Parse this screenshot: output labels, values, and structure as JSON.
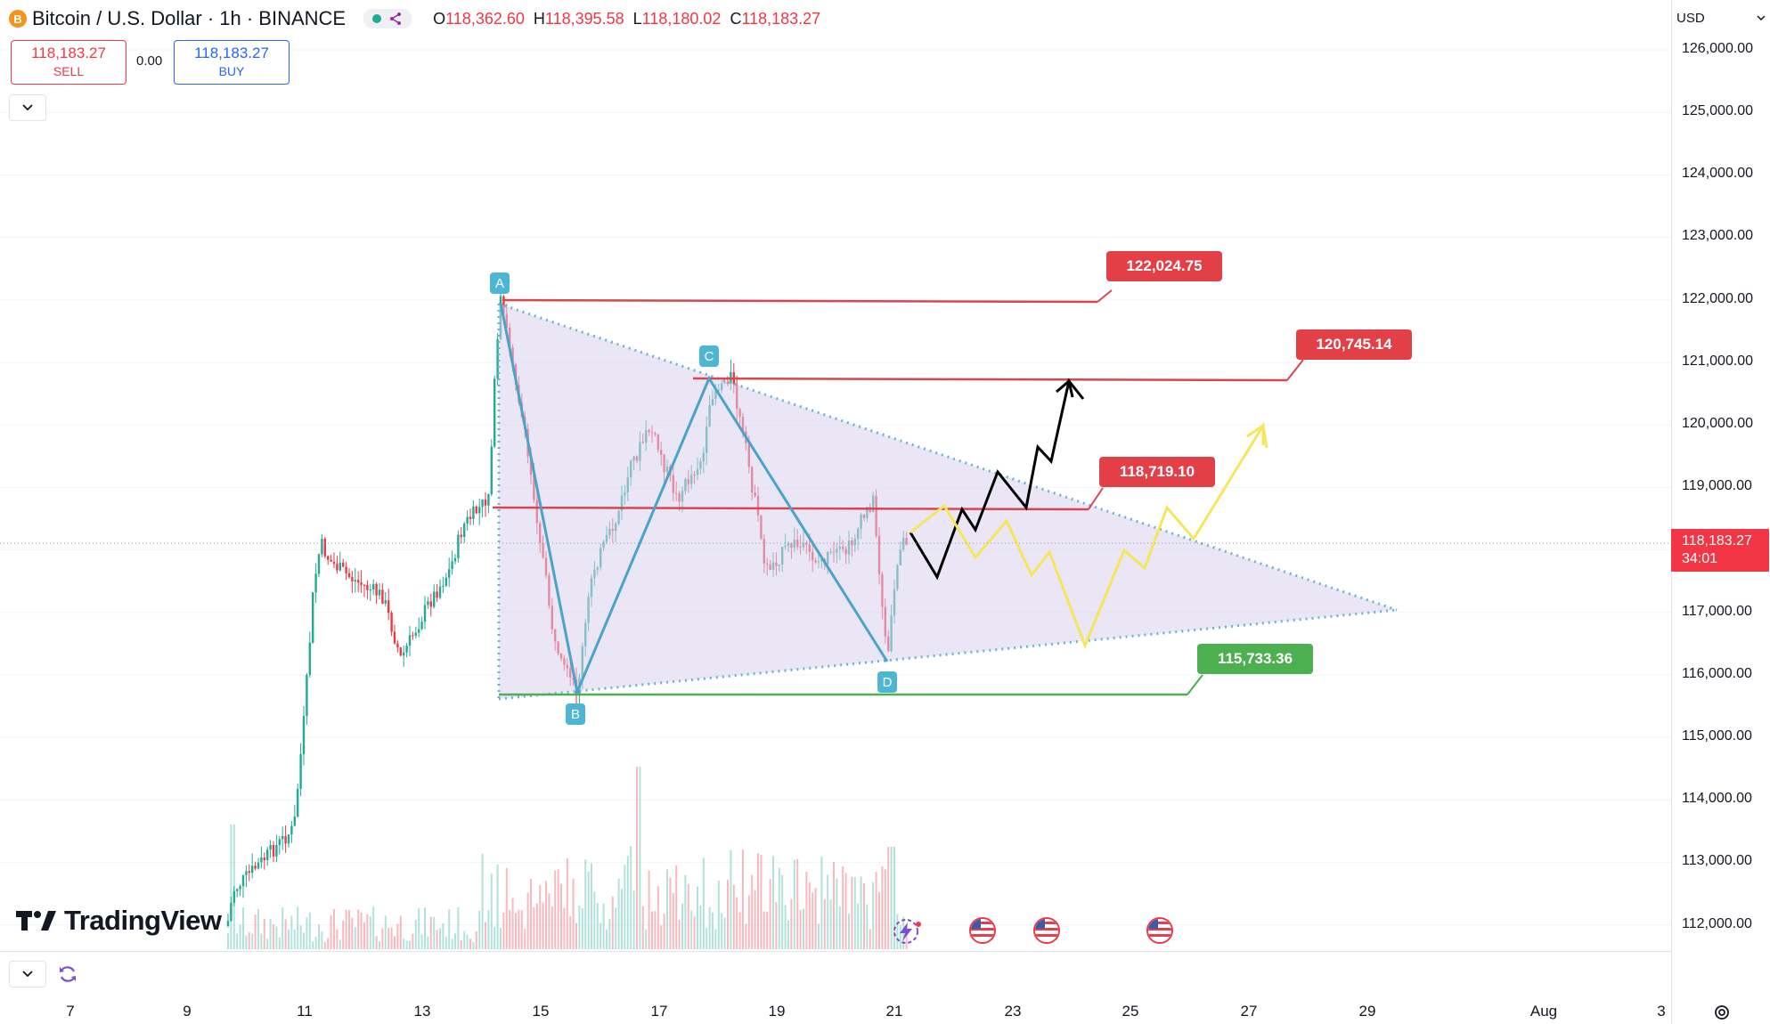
{
  "header": {
    "symbol": "Bitcoin / U.S. Dollar · 1h · BINANCE",
    "coin_icon": "B",
    "ohlc": [
      {
        "k": "O",
        "v": "118,362.60"
      },
      {
        "k": "H",
        "v": "118,395.58"
      },
      {
        "k": "L",
        "v": "118,180.02"
      },
      {
        "k": "C",
        "v": "118,183.27"
      }
    ]
  },
  "trade": {
    "sell_price": "118,183.27",
    "sell_label": "SELL",
    "spread": "0.00",
    "buy_price": "118,183.27",
    "buy_label": "BUY"
  },
  "currency": "USD",
  "current_price": {
    "price": "118,183.27",
    "countdown": "34:01"
  },
  "y_axis": [
    "126,000.00",
    "125,000.00",
    "124,000.00",
    "123,000.00",
    "122,000.00",
    "121,000.00",
    "120,000.00",
    "119,000.00",
    "117,000.00",
    "116,000.00",
    "115,000.00",
    "114,000.00",
    "113,000.00",
    "112,000.00"
  ],
  "x_axis": [
    "7",
    "9",
    "11",
    "13",
    "15",
    "17",
    "19",
    "21",
    "23",
    "25",
    "27",
    "29",
    "Aug",
    "3"
  ],
  "levels": {
    "a": "122,024.75",
    "b": "120,745.14",
    "c": "118,719.10",
    "d": "115,733.36"
  },
  "points": {
    "A": "A",
    "B": "B",
    "C": "C",
    "D": "D"
  },
  "branding": "TradingView",
  "icons": [
    "bitcoin-icon",
    "share-icon",
    "chevron-down-icon",
    "refresh-icon",
    "settings-icon",
    "us-flag-icon",
    "lightning-icon"
  ],
  "colors": {
    "up": "#22ab94",
    "down": "#f23645",
    "accent": "#2962ff",
    "triangle": "#9c8fd0",
    "pattern": "#4aa3c8"
  }
}
